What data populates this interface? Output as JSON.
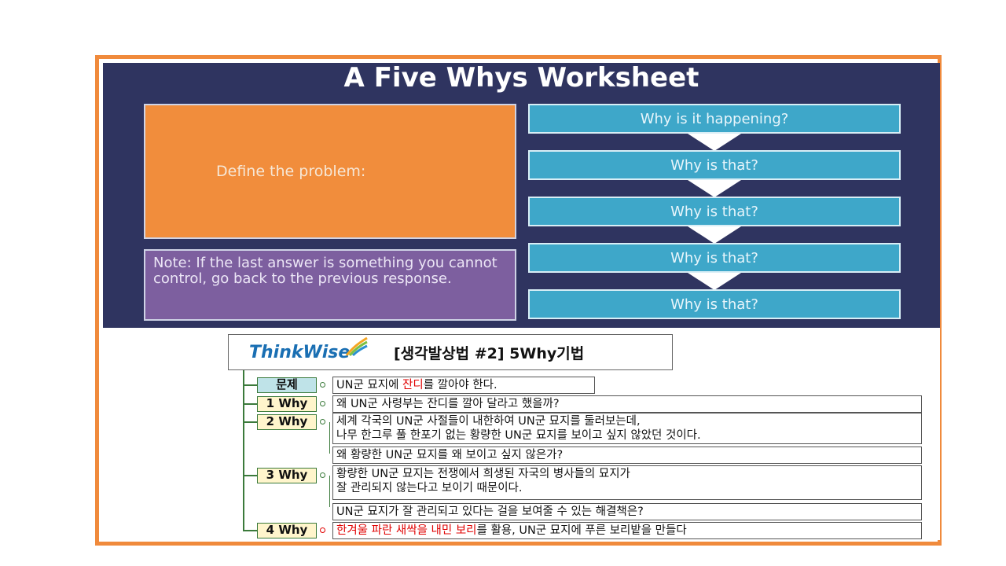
{
  "worksheet": {
    "title": "A Five Whys Worksheet",
    "define_label": "Define the problem:",
    "note": "Note: If the last answer is something you cannot control, go back to the previous response.",
    "whys": [
      "Why is it happening?",
      "Why is that?",
      "Why is that?",
      "Why is that?",
      "Why is that?"
    ]
  },
  "thinkwise": {
    "logo": "ThinkWise",
    "title": "[생각발상법 #2] 5Why기법",
    "tags": {
      "problem": "문제",
      "why1": "1 Why",
      "why2": "2 Why",
      "why3": "3 Why",
      "why4": "4 Why"
    },
    "problem_a": "UN군 묘지에 ",
    "problem_red": "잔디",
    "problem_b": "를 깔아야 한다.",
    "why1_text": "왜 UN군 사령부는 잔디를 깔아 달라고 했을까?",
    "why2_line1": "세계 각국의 UN군 사절들이 내한하여 UN군 묘지를 둘러보는데,",
    "why2_line2": "나무 한그루 풀 한포기 없는 황량한 UN군 묘지를 보이고 싶지 않았던 것이다.",
    "why2_q": "왜 황량한 UN군 묘지를 왜 보이고 싶지 않은가?",
    "why3_line1": "황량한 UN군 묘지는 전쟁에서 희생된 자국의 병사들의 묘지가",
    "why3_line2": "잘 관리되지 않는다고 보이기 때문이다.",
    "why3_q": "UN군 묘지가 잘 관리되고 있다는 걸을 보여줄 수 있는 해결책은?",
    "why4_red": "한겨울 파란 새싹을 내민 보리",
    "why4_text": "를 활용, UN군 묘지에 푸른 보리밭을 만들다"
  },
  "colors": {
    "frame": "#f08a3c",
    "navy": "#2f3460",
    "orange": "#f18d3c",
    "purple": "#7d5f9f",
    "teal": "#3ea7c9",
    "accent_red": "#e00000"
  }
}
